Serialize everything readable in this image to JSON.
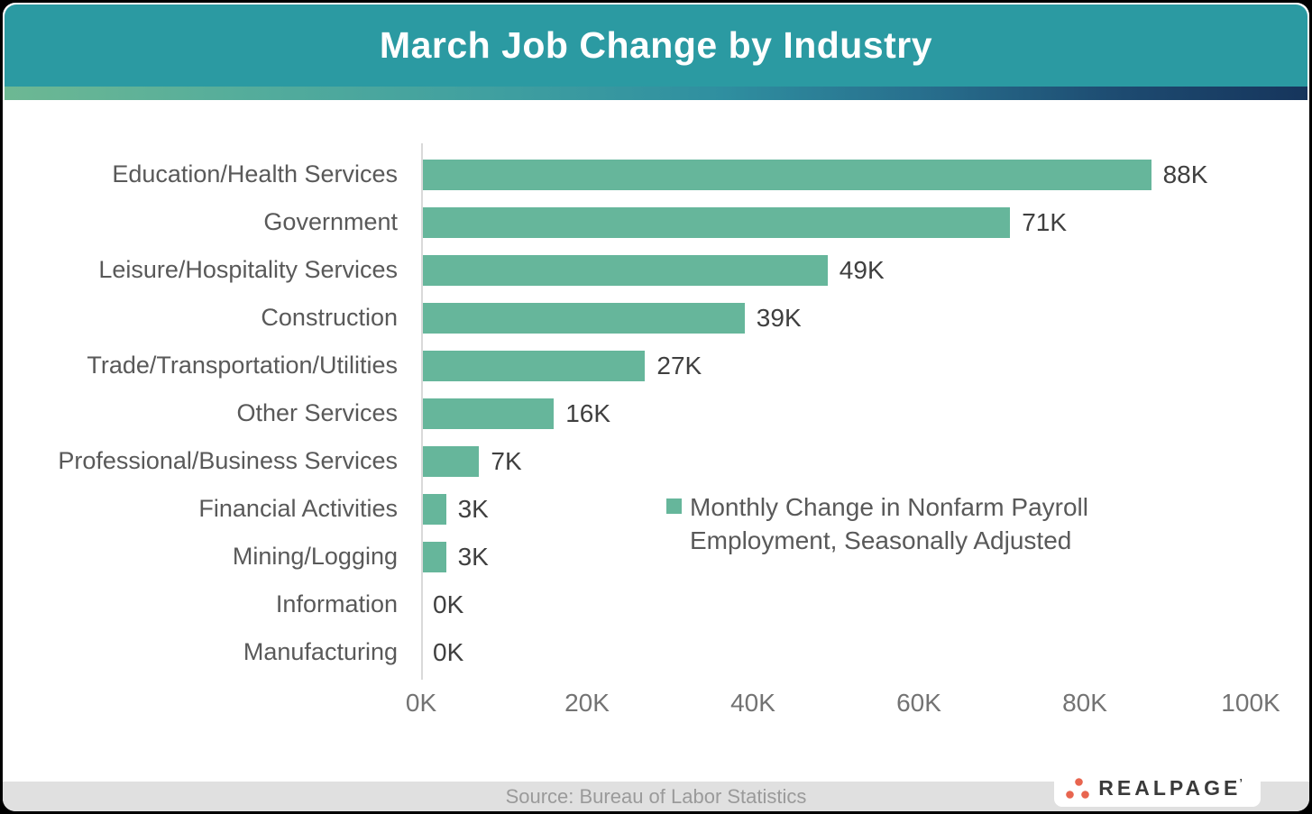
{
  "title": "March Job Change by Industry",
  "colors": {
    "header_bg": "#2b9aa2",
    "bar": "#66b69b",
    "gradient_left": "#6db893",
    "gradient_right": "#16355c",
    "footer_bg": "#e0e0e0",
    "logo_dot": "#e8654f",
    "axis_line": "#d9d9d9"
  },
  "chart_data": {
    "type": "bar",
    "orientation": "horizontal",
    "title": "March Job Change by Industry",
    "categories": [
      "Education/Health Services",
      "Government",
      "Leisure/Hospitality Services",
      "Construction",
      "Trade/Transportation/Utilities",
      "Other Services",
      "Professional/Business Services",
      "Financial Activities",
      "Mining/Logging",
      "Information",
      "Manufacturing"
    ],
    "values": [
      88,
      71,
      49,
      39,
      27,
      16,
      7,
      3,
      3,
      0,
      0
    ],
    "value_labels": [
      "88K",
      "71K",
      "49K",
      "39K",
      "27K",
      "16K",
      "7K",
      "3K",
      "3K",
      "0K",
      "0K"
    ],
    "unit": "K",
    "xlim": [
      0,
      100
    ],
    "x_ticks": [
      "0K",
      "20K",
      "40K",
      "60K",
      "80K",
      "100K"
    ],
    "x_tick_values": [
      0,
      20,
      40,
      60,
      80,
      100
    ],
    "grid": false,
    "legend": "Monthly Change in Nonfarm Payroll Employment, Seasonally Adjusted",
    "legend_position": "inside-right"
  },
  "footer": {
    "source": "Source: Bureau of Labor Statistics"
  },
  "logo": {
    "text": "REALPAGE",
    "mark": "’"
  }
}
